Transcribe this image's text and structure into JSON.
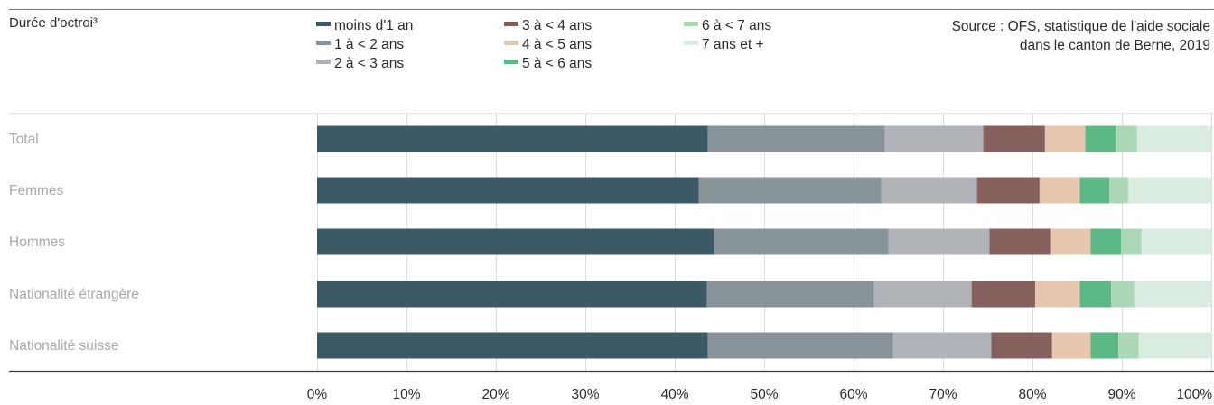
{
  "title": "Durée d'octroi³",
  "source_lines": [
    "Source : OFS, statistique de l'aide sociale",
    "dans le canton de Berne, 2019"
  ],
  "chart_data": {
    "type": "bar",
    "orientation": "horizontal",
    "stacked": true,
    "categories": [
      "Total",
      "Femmes",
      "Hommes",
      "Nationalité étrangère",
      "Nationalité suisse"
    ],
    "x_ticks": [
      "0%",
      "10%",
      "20%",
      "30%",
      "40%",
      "50%",
      "60%",
      "70%",
      "80%",
      "90%",
      "100%"
    ],
    "xlim": [
      0,
      100
    ],
    "grid": true,
    "legend_position": "top",
    "series": [
      {
        "name": "moins d'1 an",
        "color": "#3b5a66",
        "values": [
          43.7,
          42.7,
          44.4,
          43.6,
          43.7
        ]
      },
      {
        "name": "1 à < 2 ans",
        "color": "#889499",
        "values": [
          19.8,
          20.4,
          19.5,
          18.7,
          20.7
        ]
      },
      {
        "name": "2 à < 3 ans",
        "color": "#b0b4b8",
        "values": [
          11.0,
          10.7,
          11.3,
          10.9,
          11.0
        ]
      },
      {
        "name": "3 à < 4 ans",
        "color": "#86605c",
        "values": [
          6.9,
          7.0,
          6.8,
          7.1,
          6.8
        ]
      },
      {
        "name": "4 à < 5 ans",
        "color": "#e6c7ae",
        "values": [
          4.5,
          4.5,
          4.5,
          5.0,
          4.3
        ]
      },
      {
        "name": "5 à < 6 ans",
        "color": "#5cb885",
        "values": [
          3.4,
          3.3,
          3.4,
          3.5,
          3.1
        ]
      },
      {
        "name": "6 à < 7 ans",
        "color": "#aad8b7",
        "values": [
          2.4,
          2.1,
          2.3,
          2.6,
          2.3
        ]
      },
      {
        "name": "7 ans et +",
        "color": "#d9ecdf",
        "values": [
          8.3,
          9.3,
          7.8,
          8.6,
          8.1
        ]
      }
    ]
  }
}
